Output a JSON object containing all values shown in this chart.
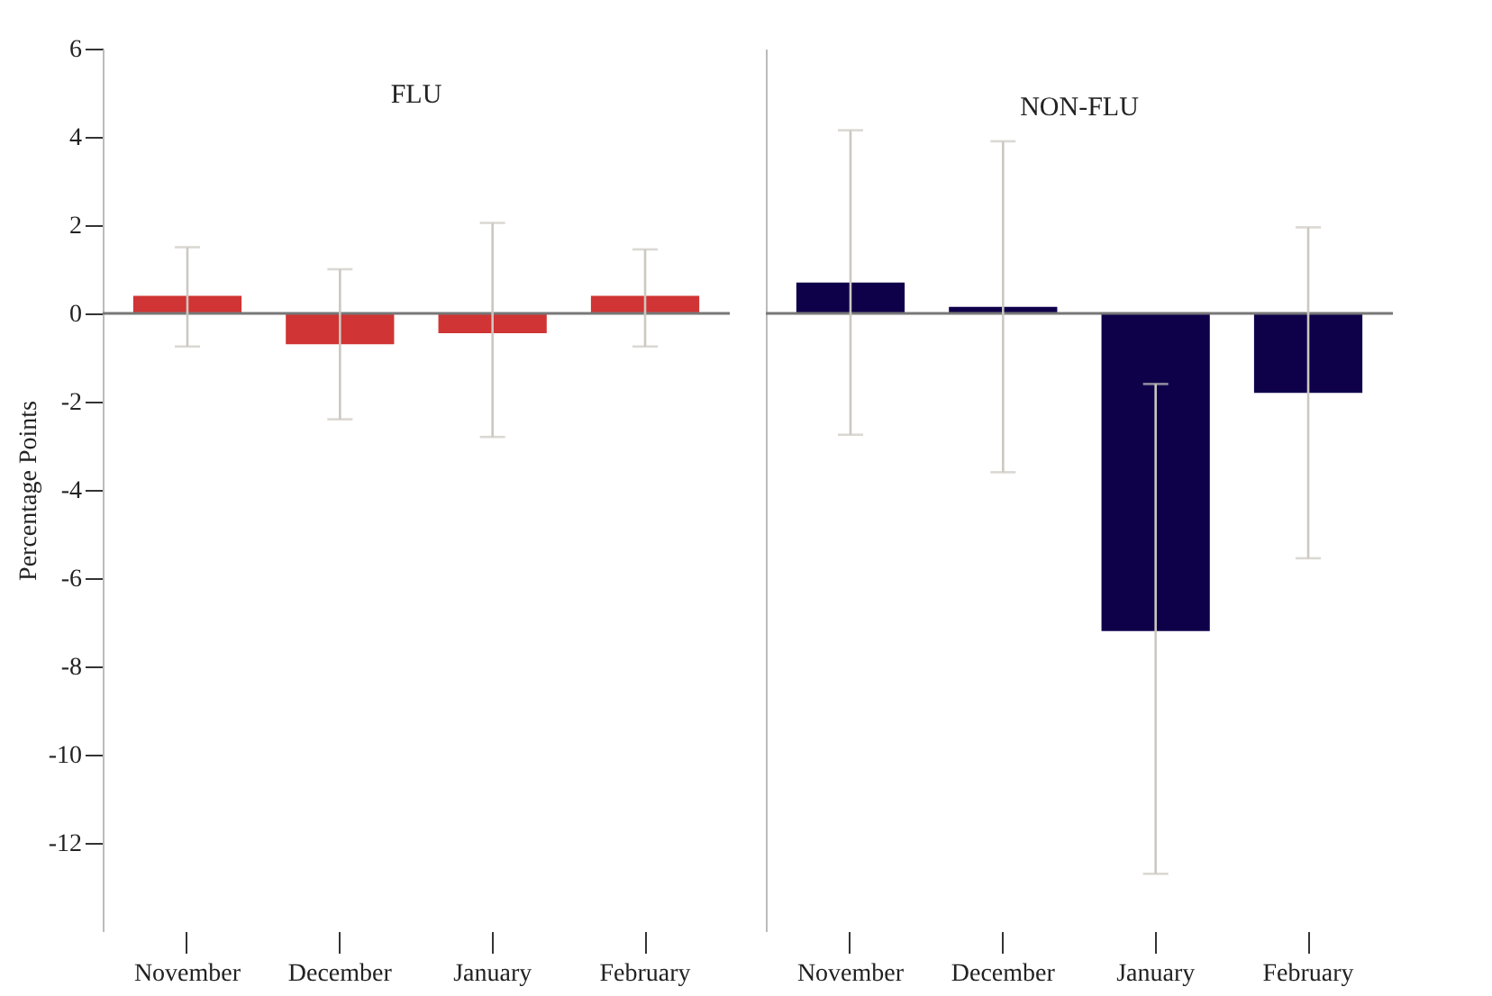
{
  "chart_data": [
    {
      "type": "bar",
      "title": "FLU",
      "ylabel": "Percentage Points",
      "categories": [
        "November",
        "December",
        "January",
        "February"
      ],
      "series": [
        {
          "color": "#d03434",
          "values": [
            0.4,
            -0.7,
            -0.45,
            0.4
          ],
          "errors": [
            [
              -0.75,
              1.5
            ],
            [
              -2.4,
              1.0
            ],
            [
              -2.8,
              2.05
            ],
            [
              -0.75,
              1.45
            ]
          ]
        }
      ],
      "ylim": [
        -14,
        6
      ],
      "yticks": [
        -12,
        -10,
        -8,
        -6,
        -4,
        -2,
        0,
        2,
        4,
        6
      ],
      "ref_lines": [
        {
          "axis": "y",
          "value": 0,
          "color": "#777777"
        }
      ]
    },
    {
      "type": "bar",
      "title": "NON-FLU",
      "categories": [
        "November",
        "December",
        "January",
        "February"
      ],
      "series": [
        {
          "color": "#0f004a",
          "values": [
            0.7,
            0.15,
            -7.2,
            -1.8
          ],
          "errors": [
            [
              -2.75,
              4.15
            ],
            [
              -3.6,
              3.9
            ],
            [
              -12.7,
              -1.6
            ],
            [
              -5.55,
              1.95
            ]
          ]
        }
      ],
      "ylim": [
        -14,
        6
      ],
      "yticks": [
        -12,
        -10,
        -8,
        -6,
        -4,
        -2,
        0,
        2,
        4,
        6
      ],
      "tick_labels": "x",
      "ref_lines": [
        {
          "axis": "y",
          "value": 0,
          "color": "#777777"
        }
      ]
    }
  ]
}
